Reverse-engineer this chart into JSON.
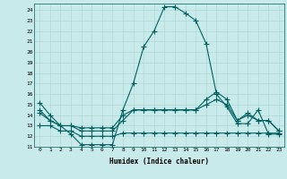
{
  "xlabel": "Humidex (Indice chaleur)",
  "background_color": "#c8eaea",
  "line_color": "#006060",
  "grid_color": "#b0d8d8",
  "xlim": [
    -0.5,
    23.5
  ],
  "ylim": [
    11,
    24.6
  ],
  "yticks": [
    11,
    12,
    13,
    14,
    15,
    16,
    17,
    18,
    19,
    20,
    21,
    22,
    23,
    24
  ],
  "xticks": [
    0,
    1,
    2,
    3,
    4,
    5,
    6,
    7,
    8,
    9,
    10,
    11,
    12,
    13,
    14,
    15,
    16,
    17,
    18,
    19,
    20,
    21,
    22,
    23
  ],
  "line1_x": [
    0,
    1,
    2,
    3,
    4,
    5,
    6,
    7,
    8,
    9,
    10,
    11,
    12,
    13,
    14,
    15,
    16,
    17,
    18,
    19,
    20,
    21,
    22,
    23
  ],
  "line1_y": [
    15.2,
    14.0,
    13.0,
    12.2,
    11.2,
    11.2,
    11.2,
    11.2,
    14.5,
    17.0,
    20.5,
    22.0,
    24.3,
    24.3,
    23.7,
    23.0,
    20.8,
    16.0,
    14.8,
    13.2,
    13.2,
    14.5,
    12.2,
    12.2
  ],
  "line2_x": [
    0,
    1,
    2,
    3,
    4,
    5,
    6,
    7,
    8,
    9,
    10,
    11,
    12,
    13,
    14,
    15,
    16,
    17,
    18,
    19,
    20,
    21,
    22,
    23
  ],
  "line2_y": [
    14.5,
    13.5,
    13.0,
    13.0,
    12.5,
    12.5,
    12.5,
    12.5,
    13.5,
    14.5,
    14.5,
    14.5,
    14.5,
    14.5,
    14.5,
    14.5,
    15.5,
    16.2,
    15.5,
    13.5,
    14.0,
    13.5,
    13.5,
    12.5
  ],
  "line3_x": [
    0,
    1,
    2,
    3,
    4,
    5,
    6,
    7,
    8,
    9,
    10,
    11,
    12,
    13,
    14,
    15,
    16,
    17,
    18,
    19,
    20,
    21,
    22,
    23
  ],
  "line3_y": [
    14.2,
    13.5,
    13.0,
    13.0,
    12.8,
    12.8,
    12.8,
    12.8,
    14.0,
    14.5,
    14.5,
    14.5,
    14.5,
    14.5,
    14.5,
    14.5,
    15.0,
    15.5,
    15.0,
    13.5,
    14.2,
    13.5,
    13.5,
    12.5
  ],
  "line4_x": [
    0,
    1,
    2,
    3,
    4,
    5,
    6,
    7,
    8,
    9,
    10,
    11,
    12,
    13,
    14,
    15,
    16,
    17,
    18,
    19,
    20,
    21,
    22,
    23
  ],
  "line4_y": [
    13.0,
    13.0,
    12.5,
    12.5,
    12.0,
    12.0,
    12.0,
    12.0,
    12.3,
    12.3,
    12.3,
    12.3,
    12.3,
    12.3,
    12.3,
    12.3,
    12.3,
    12.3,
    12.3,
    12.3,
    12.3,
    12.3,
    12.3,
    12.3
  ]
}
